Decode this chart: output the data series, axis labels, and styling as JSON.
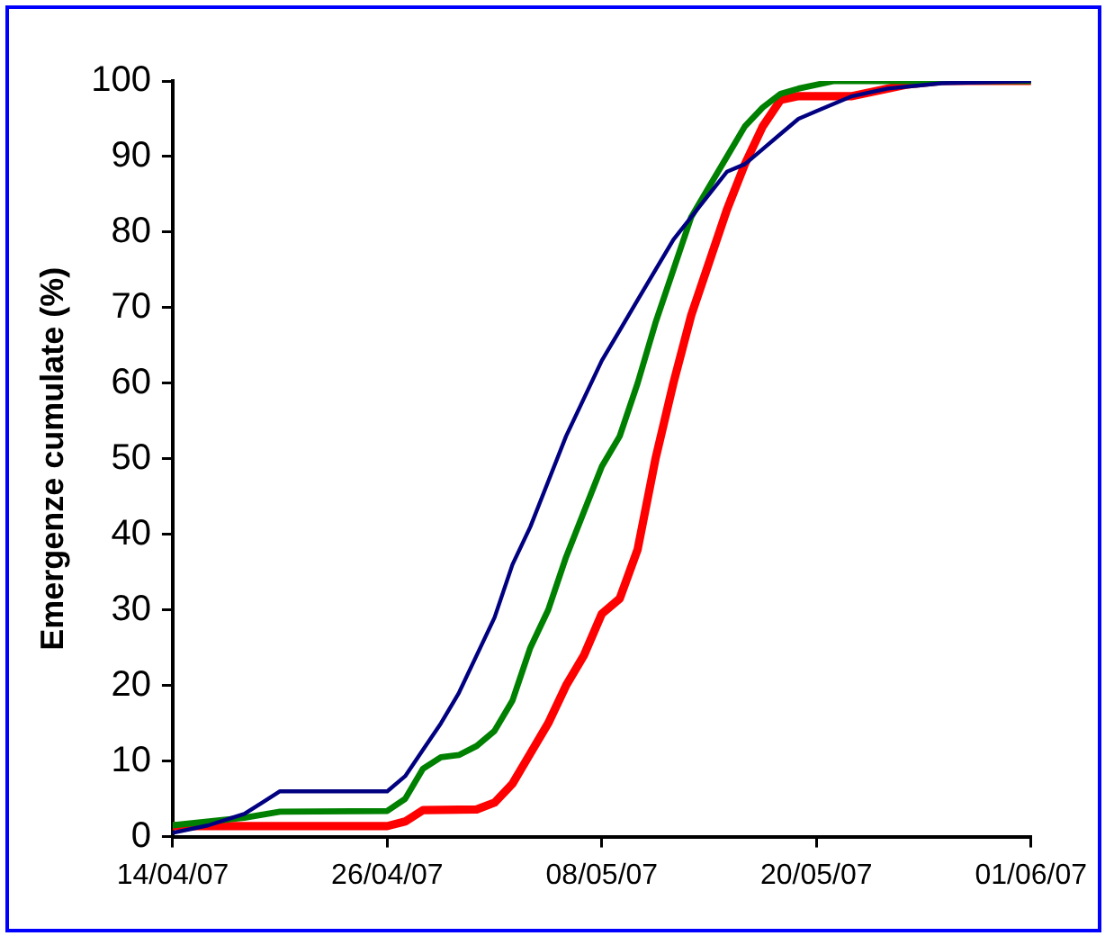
{
  "chart_data": {
    "type": "line",
    "ylabel": "Emergenze cumulate (%)",
    "xlim": [
      "2007-04-14",
      "2007-06-01"
    ],
    "xticks": [
      {
        "value": "2007-04-14",
        "label": "14/04/07"
      },
      {
        "value": "2007-04-26",
        "label": "26/04/07"
      },
      {
        "value": "2007-05-08",
        "label": "08/05/07"
      },
      {
        "value": "2007-05-20",
        "label": "20/05/07"
      },
      {
        "value": "2007-06-01",
        "label": "01/06/07"
      }
    ],
    "ylim": [
      0,
      100
    ],
    "yticks": [
      0,
      10,
      20,
      30,
      40,
      50,
      60,
      70,
      80,
      90,
      100
    ],
    "grid": false,
    "legend": false,
    "marker": "none",
    "line_style": "solid",
    "series": [
      {
        "color": "#000080",
        "x": [
          "2007-04-14",
          "2007-04-16",
          "2007-04-18",
          "2007-04-19",
          "2007-04-20",
          "2007-04-26",
          "2007-04-27",
          "2007-04-28",
          "2007-04-29",
          "2007-04-30",
          "2007-05-01",
          "2007-05-02",
          "2007-05-03",
          "2007-05-04",
          "2007-05-05",
          "2007-05-06",
          "2007-05-07",
          "2007-05-08",
          "2007-05-09",
          "2007-05-10",
          "2007-05-11",
          "2007-05-12",
          "2007-05-13",
          "2007-05-14",
          "2007-05-15",
          "2007-05-16",
          "2007-05-17",
          "2007-05-18",
          "2007-05-19",
          "2007-05-20",
          "2007-05-22",
          "2007-05-24",
          "2007-05-27",
          "2007-06-01"
        ],
        "values": [
          0.5,
          1.5,
          3,
          4.5,
          6,
          6,
          8,
          11.5,
          15,
          19,
          24,
          29,
          36,
          41,
          47,
          53,
          58,
          63,
          67,
          71,
          75,
          79,
          82,
          85,
          88,
          89,
          91,
          93,
          95,
          96,
          98,
          99,
          99.7,
          100
        ]
      },
      {
        "color": "#008000",
        "x": [
          "2007-04-14",
          "2007-04-18",
          "2007-04-20",
          "2007-04-26",
          "2007-04-27",
          "2007-04-28",
          "2007-04-29",
          "2007-04-30",
          "2007-05-01",
          "2007-05-02",
          "2007-05-03",
          "2007-05-04",
          "2007-05-05",
          "2007-05-06",
          "2007-05-07",
          "2007-05-08",
          "2007-05-09",
          "2007-05-10",
          "2007-05-11",
          "2007-05-12",
          "2007-05-13",
          "2007-05-14",
          "2007-05-15",
          "2007-05-16",
          "2007-05-17",
          "2007-05-18",
          "2007-05-19",
          "2007-05-21",
          "2007-06-01"
        ],
        "values": [
          1.5,
          2.5,
          3.3,
          3.4,
          5,
          9,
          10.5,
          10.8,
          12,
          14,
          18,
          25,
          30,
          37,
          43,
          49,
          53,
          60,
          68,
          75,
          82,
          86,
          90,
          94,
          96.5,
          98.3,
          99,
          100,
          100
        ]
      },
      {
        "color": "#ff0000",
        "x": [
          "2007-04-14",
          "2007-04-26",
          "2007-04-27",
          "2007-04-28",
          "2007-05-01",
          "2007-05-02",
          "2007-05-03",
          "2007-05-04",
          "2007-05-05",
          "2007-05-06",
          "2007-05-07",
          "2007-05-08",
          "2007-05-09",
          "2007-05-10",
          "2007-05-11",
          "2007-05-12",
          "2007-05-13",
          "2007-05-14",
          "2007-05-15",
          "2007-05-16",
          "2007-05-17",
          "2007-05-18",
          "2007-05-19",
          "2007-05-22",
          "2007-05-25",
          "2007-05-27",
          "2007-06-01"
        ],
        "values": [
          1.4,
          1.4,
          2,
          3.5,
          3.6,
          4.5,
          7,
          11,
          15,
          20,
          24,
          29.5,
          31.5,
          38,
          50,
          60,
          69,
          76,
          83,
          89,
          94,
          97.5,
          98,
          98,
          99.5,
          100,
          100
        ]
      }
    ]
  }
}
